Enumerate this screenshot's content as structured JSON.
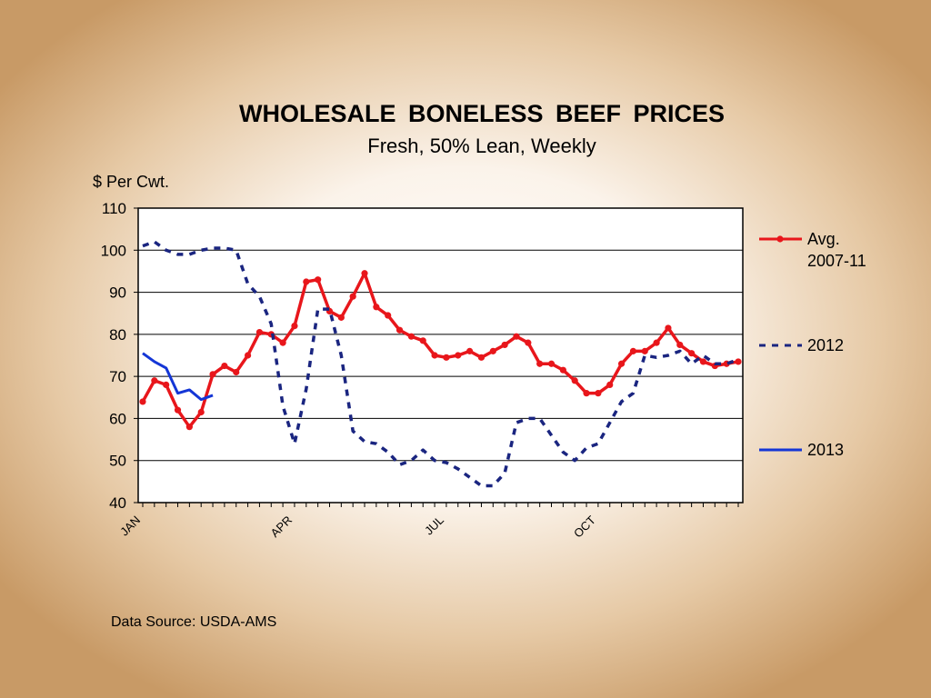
{
  "chart_data": {
    "type": "line",
    "title": "WHOLESALE  BONELESS  BEEF  PRICES",
    "subtitle": "Fresh, 50% Lean, Weekly",
    "ylabel": "$ Per Cwt.",
    "xlabel": "",
    "ylim": [
      40,
      110
    ],
    "yticks": [
      40,
      50,
      60,
      70,
      80,
      90,
      100,
      110
    ],
    "x_weeks": 52,
    "xticks": [
      {
        "label": "JAN",
        "week": 1
      },
      {
        "label": "APR",
        "week": 14
      },
      {
        "label": "JUL",
        "week": 27
      },
      {
        "label": "OCT",
        "week": 40
      }
    ],
    "grid": true,
    "legend_position": "right",
    "series": [
      {
        "name": "Avg.\n2007-11",
        "name_lines": [
          "Avg.",
          "2007-11"
        ],
        "style": "solid-markers",
        "color": "#e8161b",
        "x": [
          1,
          2,
          3,
          4,
          5,
          6,
          7,
          8,
          9,
          10,
          11,
          12,
          13,
          14,
          15,
          16,
          17,
          18,
          19,
          20,
          21,
          22,
          23,
          24,
          25,
          26,
          27,
          28,
          29,
          30,
          31,
          32,
          33,
          34,
          35,
          36,
          37,
          38,
          39,
          40,
          41,
          42,
          43,
          44,
          45,
          46,
          47,
          48,
          49,
          50,
          51,
          52
        ],
        "values": [
          64,
          69,
          68,
          62,
          58,
          61.5,
          70.5,
          72.5,
          71,
          75,
          80.5,
          80,
          78,
          82,
          92.5,
          93,
          85.5,
          84,
          89,
          94.5,
          86.5,
          84.5,
          81,
          79.5,
          78.5,
          75,
          74.5,
          75,
          76,
          74.5,
          76,
          77.5,
          79.5,
          78,
          73,
          73,
          71.5,
          69,
          66,
          66,
          68,
          73,
          76,
          76,
          78,
          81.5,
          77.5,
          75.5,
          73.5,
          72.5,
          73,
          73.5
        ]
      },
      {
        "name": "2012",
        "style": "dashed",
        "color": "#1a2580",
        "x": [
          1,
          2,
          3,
          4,
          5,
          6,
          7,
          8,
          9,
          10,
          11,
          12,
          13,
          14,
          15,
          16,
          17,
          18,
          19,
          20,
          21,
          22,
          23,
          24,
          25,
          26,
          27,
          28,
          29,
          30,
          31,
          32,
          33,
          34,
          35,
          36,
          37,
          38,
          39,
          40,
          41,
          42,
          43,
          44,
          45,
          46,
          47,
          48,
          49,
          50,
          51,
          52
        ],
        "values": [
          101,
          102,
          100,
          99,
          99,
          100,
          100.5,
          100.5,
          100,
          92,
          89,
          82.5,
          63,
          54,
          67,
          86,
          86,
          75,
          57,
          54.5,
          54,
          52,
          49,
          50,
          52.5,
          50,
          49.5,
          48,
          46,
          44,
          44,
          47,
          59,
          60,
          60,
          56,
          52,
          50,
          53,
          54,
          59,
          64,
          66,
          75,
          74.5,
          75,
          76,
          73,
          75,
          73,
          73,
          74
        ]
      },
      {
        "name": "2013",
        "style": "solid",
        "color": "#1436d6",
        "x": [
          1,
          2,
          3,
          4,
          5,
          6,
          7
        ],
        "values": [
          75.5,
          73.5,
          72,
          66,
          66.8,
          64.5,
          65.5
        ]
      }
    ]
  },
  "source": "Data Source: USDA-AMS"
}
